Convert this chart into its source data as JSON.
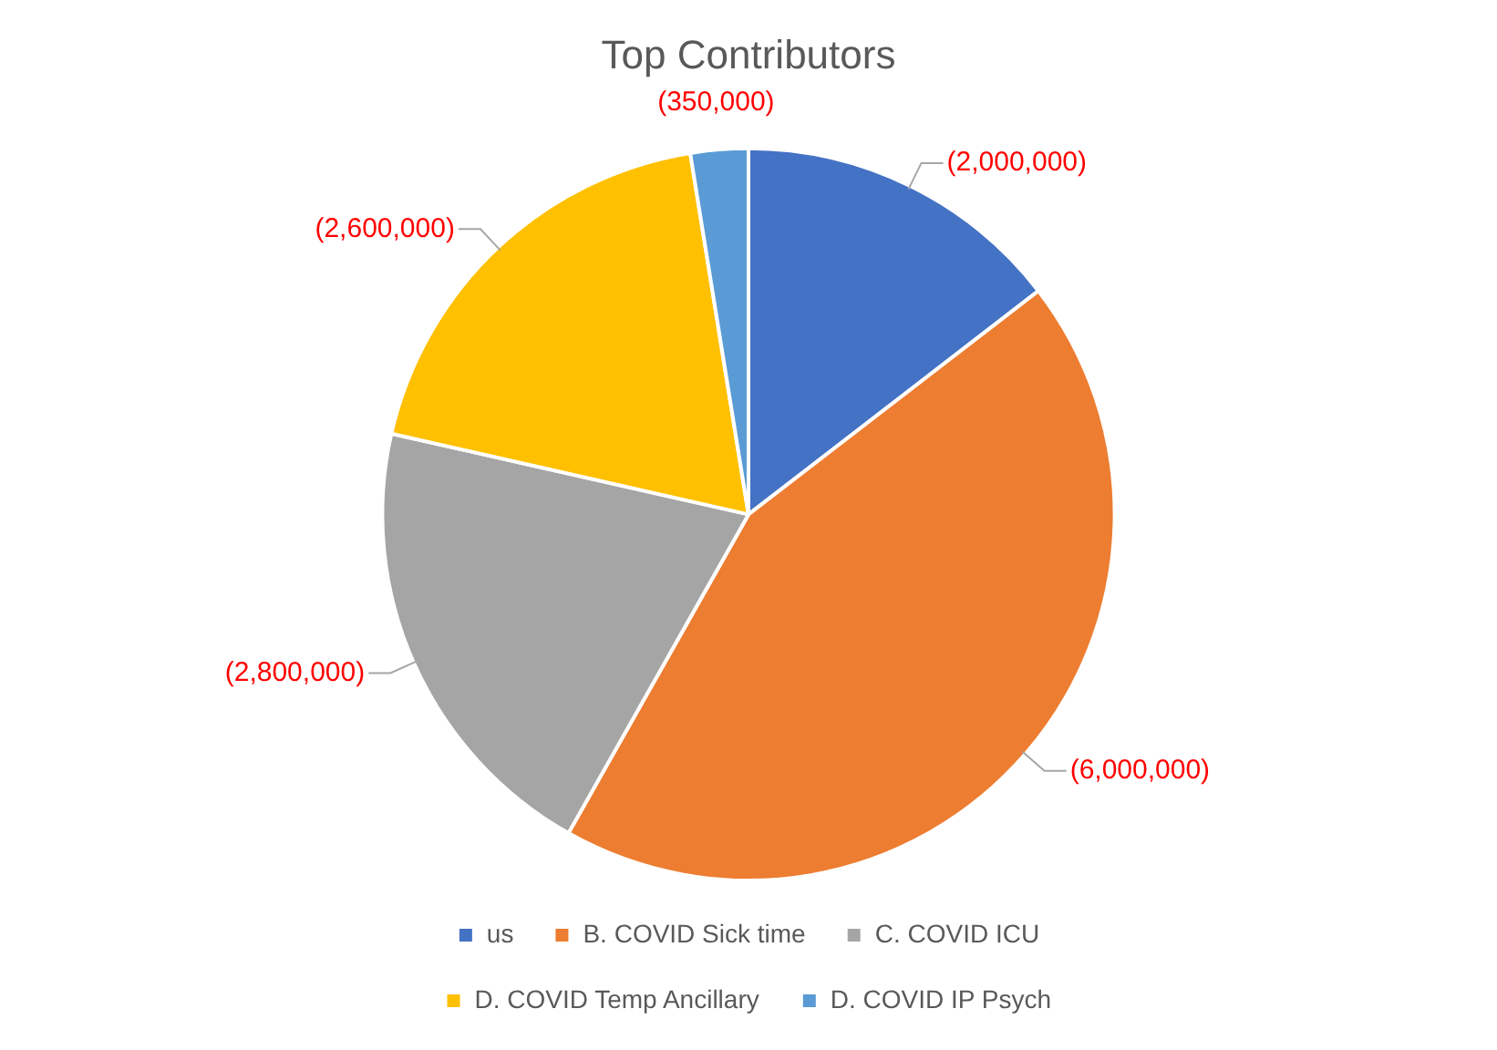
{
  "chart_data": {
    "type": "pie",
    "title": "Top Contributors",
    "categories": [
      "us",
      "B. COVID Sick time",
      "C. COVID ICU",
      "D. COVID Temp Ancillary",
      "D. COVID IP Psych"
    ],
    "values": [
      2000000,
      6000000,
      2800000,
      2600000,
      350000
    ],
    "value_labels": [
      "(2,000,000)",
      "(6,000,000)",
      "(2,800,000)",
      "(2,600,000)",
      "(350,000)"
    ],
    "colors": [
      "#4472c4",
      "#ed7d31",
      "#a5a5a5",
      "#ffc000",
      "#5b9bd5"
    ],
    "legend": "bottom"
  }
}
